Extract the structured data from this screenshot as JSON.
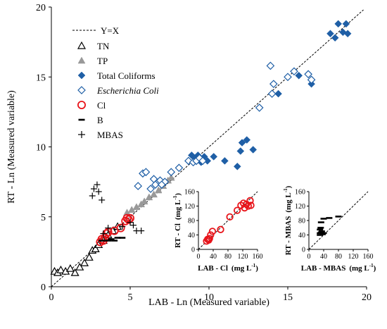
{
  "chart_data": [
    {
      "type": "scatter",
      "title": "",
      "xlabel": "LAB - Ln (Measured variable)",
      "ylabel": "RT - Ln (Measured variable)",
      "xlim": [
        0,
        20
      ],
      "ylim": [
        0,
        20
      ],
      "xticks": [
        "0",
        "5",
        "10",
        "15",
        "20"
      ],
      "yticks": [
        "0",
        "5",
        "10",
        "15",
        "20"
      ],
      "grid": false,
      "legend_position": "top-left",
      "reference_line": {
        "name": "Y=X",
        "style": "dashed"
      },
      "series": [
        {
          "name": "TN",
          "marker": "open-triangle",
          "color": "#000000",
          "points": [
            [
              0.2,
              1.1
            ],
            [
              0.4,
              1.0
            ],
            [
              0.6,
              1.2
            ],
            [
              0.9,
              1.1
            ],
            [
              1.2,
              1.3
            ],
            [
              1.5,
              1.0
            ],
            [
              1.8,
              1.4
            ],
            [
              2.1,
              1.7
            ],
            [
              2.4,
              2.1
            ],
            [
              2.6,
              2.6
            ],
            [
              2.8,
              2.7
            ],
            [
              3.0,
              3.0
            ],
            [
              3.3,
              3.3
            ],
            [
              3.6,
              3.7
            ],
            [
              3.9,
              4.0
            ],
            [
              4.2,
              4.3
            ]
          ]
        },
        {
          "name": "TP",
          "marker": "filled-triangle",
          "color": "#999999",
          "points": [
            [
              4.8,
              5.3
            ],
            [
              5.1,
              5.5
            ],
            [
              5.4,
              5.7
            ],
            [
              5.7,
              5.9
            ],
            [
              5.9,
              6.1
            ],
            [
              6.2,
              6.4
            ],
            [
              6.5,
              6.6
            ],
            [
              6.8,
              6.9
            ],
            [
              7.1,
              7.2
            ],
            [
              7.4,
              7.6
            ],
            [
              7.6,
              7.8
            ]
          ]
        },
        {
          "name": "Total Coliforms",
          "marker": "filled-diamond",
          "color": "#1f5fa6",
          "points": [
            [
              8.9,
              9.4
            ],
            [
              9.1,
              9.2
            ],
            [
              9.3,
              9.4
            ],
            [
              9.5,
              8.9
            ],
            [
              9.7,
              9.3
            ],
            [
              9.9,
              9.0
            ],
            [
              10.3,
              9.3
            ],
            [
              11.0,
              9.0
            ],
            [
              11.8,
              8.6
            ],
            [
              12.0,
              9.7
            ],
            [
              12.1,
              10.3
            ],
            [
              12.4,
              10.5
            ],
            [
              12.8,
              9.8
            ],
            [
              14.4,
              13.8
            ],
            [
              15.7,
              15.1
            ],
            [
              17.7,
              18.1
            ],
            [
              18.0,
              17.8
            ],
            [
              18.2,
              18.8
            ],
            [
              18.5,
              18.2
            ],
            [
              18.7,
              18.8
            ],
            [
              18.8,
              18.1
            ],
            [
              16.5,
              14.5
            ]
          ]
        },
        {
          "name": "Escherichia Coli",
          "name_style": "italic",
          "marker": "open-diamond",
          "color": "#1f5fa6",
          "points": [
            [
              5.5,
              7.2
            ],
            [
              5.8,
              8.1
            ],
            [
              6.0,
              8.2
            ],
            [
              6.3,
              7.0
            ],
            [
              6.6,
              7.3
            ],
            [
              6.9,
              7.6
            ],
            [
              7.2,
              7.5
            ],
            [
              7.6,
              8.2
            ],
            [
              8.1,
              8.5
            ],
            [
              8.7,
              9.0
            ],
            [
              9.0,
              8.9
            ],
            [
              9.2,
              9.0
            ],
            [
              9.4,
              9.2
            ],
            [
              9.6,
              9.0
            ],
            [
              13.2,
              12.8
            ],
            [
              13.9,
              15.8
            ],
            [
              14.0,
              13.8
            ],
            [
              14.1,
              14.5
            ],
            [
              15.0,
              15.0
            ],
            [
              15.4,
              15.4
            ],
            [
              16.3,
              15.2
            ],
            [
              16.5,
              14.8
            ],
            [
              6.5,
              7.7
            ],
            [
              7.0,
              7.3
            ]
          ]
        },
        {
          "name": "Cl",
          "marker": "open-circle",
          "color": "#e8141a",
          "points": [
            [
              3.1,
              3.2
            ],
            [
              3.2,
              3.4
            ],
            [
              3.3,
              3.3
            ],
            [
              3.4,
              3.5
            ],
            [
              3.5,
              3.8
            ],
            [
              3.6,
              3.9
            ],
            [
              4.0,
              4.0
            ],
            [
              4.4,
              4.2
            ],
            [
              4.7,
              4.7
            ],
            [
              4.8,
              4.9
            ],
            [
              4.9,
              4.8
            ],
            [
              5.0,
              4.9
            ]
          ]
        },
        {
          "name": "B",
          "marker": "dash",
          "color": "#000000",
          "points": [
            [
              3.6,
              3.3
            ],
            [
              3.8,
              3.4
            ],
            [
              4.0,
              3.3
            ],
            [
              4.2,
              3.5
            ],
            [
              4.5,
              3.5
            ],
            [
              3.2,
              3.3
            ]
          ]
        },
        {
          "name": "MBAS",
          "marker": "plus",
          "color": "#000000",
          "points": [
            [
              3.3,
              3.8
            ],
            [
              3.6,
              4.2
            ],
            [
              4.5,
              4.3
            ],
            [
              5.0,
              4.6
            ],
            [
              5.4,
              4.0
            ],
            [
              5.7,
              4.0
            ],
            [
              5.2,
              4.4
            ],
            [
              2.7,
              7.0
            ],
            [
              2.9,
              7.3
            ],
            [
              2.6,
              6.5
            ],
            [
              3.2,
              6.2
            ],
            [
              3.0,
              6.8
            ]
          ]
        }
      ]
    },
    {
      "type": "scatter",
      "title": "",
      "xlabel": "LAB - Cl",
      "xunit": "(mg L",
      "ylabel": "RT - Cl",
      "yunit": "(mg L",
      "unit_sup": "-1",
      "xlim": [
        0,
        160
      ],
      "ylim": [
        0,
        160
      ],
      "xticks": [
        "0",
        "40",
        "80",
        "120",
        "160"
      ],
      "yticks": [
        "0",
        "40",
        "80",
        "120",
        "160"
      ],
      "reference_line": {
        "style": "dashed"
      },
      "series": [
        {
          "name": "Cl",
          "marker": "open-circle",
          "color": "#e8141a",
          "points": [
            [
              22,
              23
            ],
            [
              25,
              28
            ],
            [
              28,
              26
            ],
            [
              30,
              30
            ],
            [
              33,
              40
            ],
            [
              38,
              50
            ],
            [
              60,
              55
            ],
            [
              85,
              90
            ],
            [
              105,
              108
            ],
            [
              115,
              122
            ],
            [
              122,
              128
            ],
            [
              125,
              115
            ],
            [
              130,
              125
            ],
            [
              135,
              120
            ],
            [
              140,
              135
            ],
            [
              142,
              122
            ]
          ]
        }
      ]
    },
    {
      "type": "scatter",
      "title": "",
      "xlabel": "LAB - MBAS",
      "xunit": "(mg L",
      "ylabel": "RT - MBAS",
      "yunit": "(mg L",
      "unit_sup": "-1",
      "xlim": [
        0,
        160
      ],
      "ylim": [
        0,
        160
      ],
      "xticks": [
        "0",
        "40",
        "80",
        "120",
        "160"
      ],
      "yticks": [
        "0",
        "40",
        "80",
        "120",
        "160"
      ],
      "reference_line": {
        "style": "dashed"
      },
      "series": [
        {
          "name": "MBAS",
          "marker": "dash",
          "color": "#000000",
          "points": [
            [
              30,
              40
            ],
            [
              30,
              45
            ],
            [
              33,
              47
            ],
            [
              35,
              50
            ],
            [
              37,
              42
            ],
            [
              40,
              45
            ],
            [
              30,
              55
            ],
            [
              32,
              60
            ],
            [
              33,
              75
            ],
            [
              55,
              87
            ],
            [
              80,
              91
            ],
            [
              40,
              85
            ]
          ]
        }
      ]
    }
  ]
}
